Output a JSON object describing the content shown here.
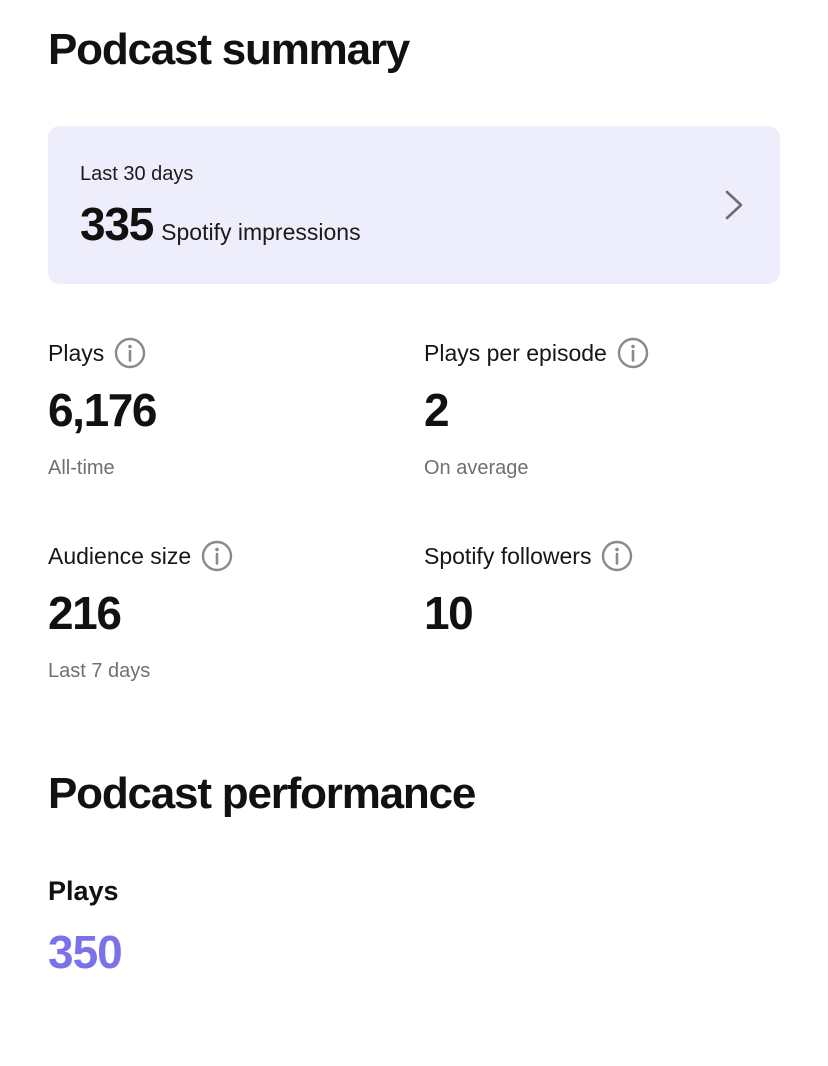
{
  "summary": {
    "title": "Podcast summary",
    "impressions_card": {
      "period": "Last 30 days",
      "value": "335",
      "unit": "Spotify impressions",
      "chevron_icon": "chevron-right-icon"
    },
    "stats": [
      {
        "label": "Plays",
        "value": "6,176",
        "caption": "All-time",
        "icon": "info-icon"
      },
      {
        "label": "Plays per episode",
        "value": "2",
        "caption": "On average",
        "icon": "info-icon"
      },
      {
        "label": "Audience size",
        "value": "216",
        "caption": "Last 7 days",
        "icon": "info-icon"
      },
      {
        "label": "Spotify followers",
        "value": "10",
        "caption": "",
        "icon": "info-icon"
      }
    ]
  },
  "performance": {
    "title": "Podcast performance",
    "metric_label": "Plays",
    "metric_value": "350"
  },
  "colors": {
    "card_background": "#eeedfb",
    "accent": "#7b72e9",
    "caption": "#707070",
    "icon": "#8a8a8a"
  }
}
